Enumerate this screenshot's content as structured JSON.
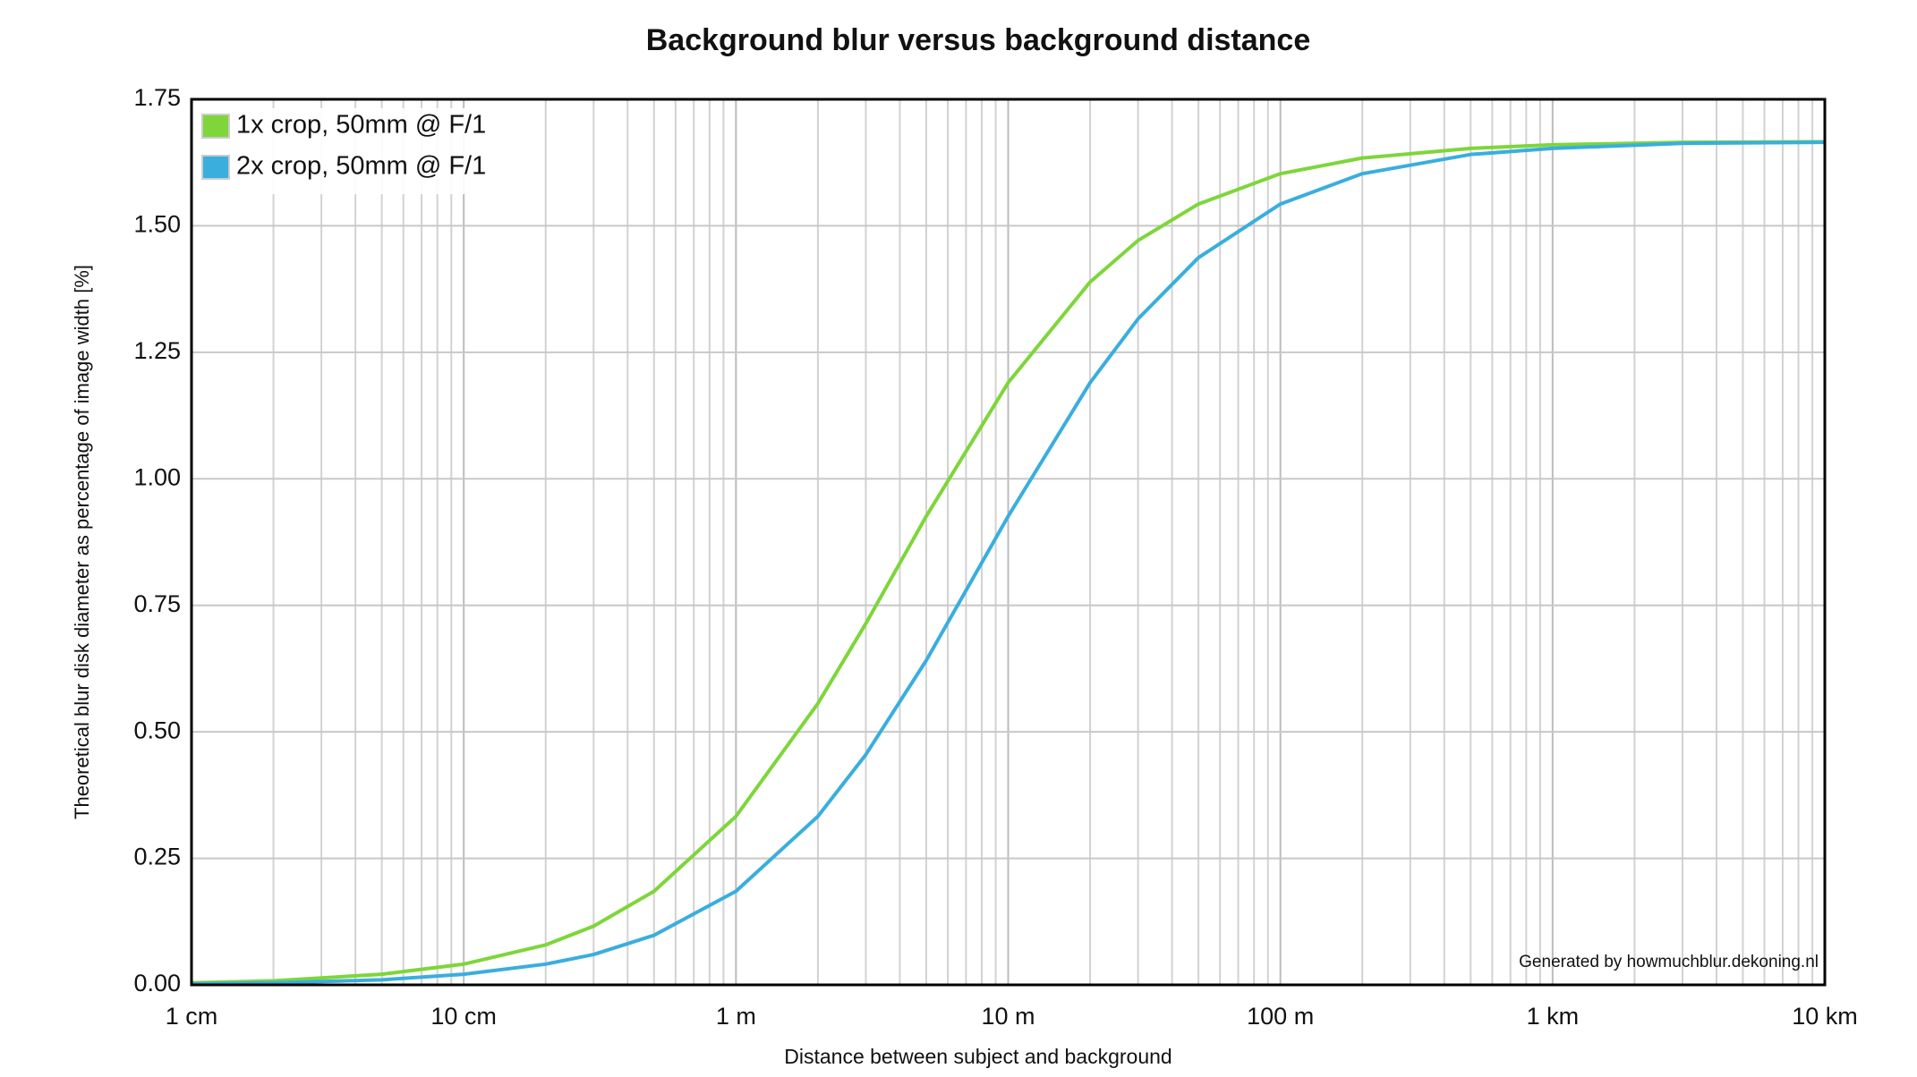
{
  "chart_data": {
    "type": "line",
    "title": "Background blur versus background distance",
    "xlabel": "Distance between subject and background",
    "ylabel": "Theoretical blur disk diameter as percentage of image width [%]",
    "annotation": "Generated by howmuchblur.dekoning.nl",
    "x": [
      0.01,
      0.02,
      0.05,
      0.1,
      0.2,
      0.3,
      0.5,
      1,
      2,
      3,
      5,
      10,
      20,
      30,
      50,
      100,
      200,
      500,
      1000,
      3000,
      10000
    ],
    "series": [
      {
        "name": "1x crop, 50mm @ F/1",
        "color": "#7ed63a",
        "values": [
          0.004,
          0.008,
          0.021,
          0.041,
          0.079,
          0.116,
          0.185,
          0.333,
          0.556,
          0.714,
          0.926,
          1.19,
          1.389,
          1.471,
          1.543,
          1.603,
          1.634,
          1.653,
          1.66,
          1.665,
          1.666
        ]
      },
      {
        "name": "2x crop, 50mm @ F/1",
        "color": "#3aaedd",
        "values": [
          0.002,
          0.004,
          0.01,
          0.021,
          0.041,
          0.06,
          0.098,
          0.185,
          0.333,
          0.455,
          0.641,
          0.926,
          1.19,
          1.316,
          1.437,
          1.543,
          1.603,
          1.641,
          1.653,
          1.663,
          1.665
        ]
      }
    ],
    "xlim": [
      0.01,
      10000
    ],
    "xticks": [
      {
        "value": 0.01,
        "label": "1 cm"
      },
      {
        "value": 0.1,
        "label": "10 cm"
      },
      {
        "value": 1,
        "label": "1 m"
      },
      {
        "value": 10,
        "label": "10 m"
      },
      {
        "value": 100,
        "label": "100 m"
      },
      {
        "value": 1000,
        "label": "1 km"
      },
      {
        "value": 10000,
        "label": "10 km"
      }
    ],
    "xscale": "log",
    "ylim": [
      0,
      1.75
    ],
    "yticks": [
      {
        "value": 0,
        "label": "0.00"
      },
      0.25,
      {
        "value": 0.5,
        "label": "0.50"
      },
      0.75,
      {
        "value": 1,
        "label": "1.00"
      },
      1.25,
      {
        "value": 1.5,
        "label": "1.50"
      },
      1.75
    ],
    "grid": true,
    "legend": "upper left"
  }
}
